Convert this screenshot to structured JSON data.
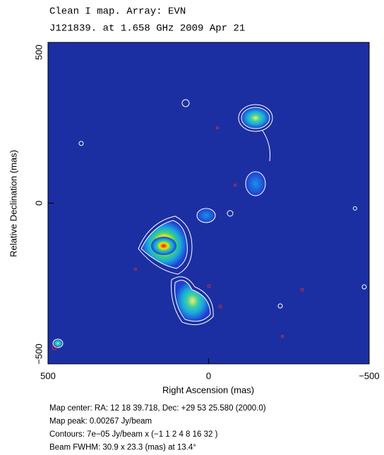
{
  "chart_data": {
    "type": "map",
    "title": "Clean I map.  Array:  EVN",
    "subtitle": "J121839. at 1.658 GHz 2009 Apr 21",
    "xlabel": "Right Ascension   (mas)",
    "ylabel": "Relative Declination   (mas)",
    "xlim": [
      500,
      -500
    ],
    "ylim": [
      -500,
      500
    ],
    "xticks": [
      500,
      0,
      {
        "value": -500,
        "label": "−500"
      }
    ],
    "yticks": [
      {
        "value": -500,
        "label": "−500"
      },
      0,
      500
    ],
    "notes": [
      "Map center:  RA: 12 18 39.718,  Dec: +29 53 25.580 (2000.0)",
      "Map peak: 0.00267 Jy/beam",
      "Contours: 7e−05 Jy/beam x (−1 1 2 4 8 16 32 )",
      "Beam FWHM: 30.9 x 23.3 (mas) at 13.4°"
    ]
  }
}
